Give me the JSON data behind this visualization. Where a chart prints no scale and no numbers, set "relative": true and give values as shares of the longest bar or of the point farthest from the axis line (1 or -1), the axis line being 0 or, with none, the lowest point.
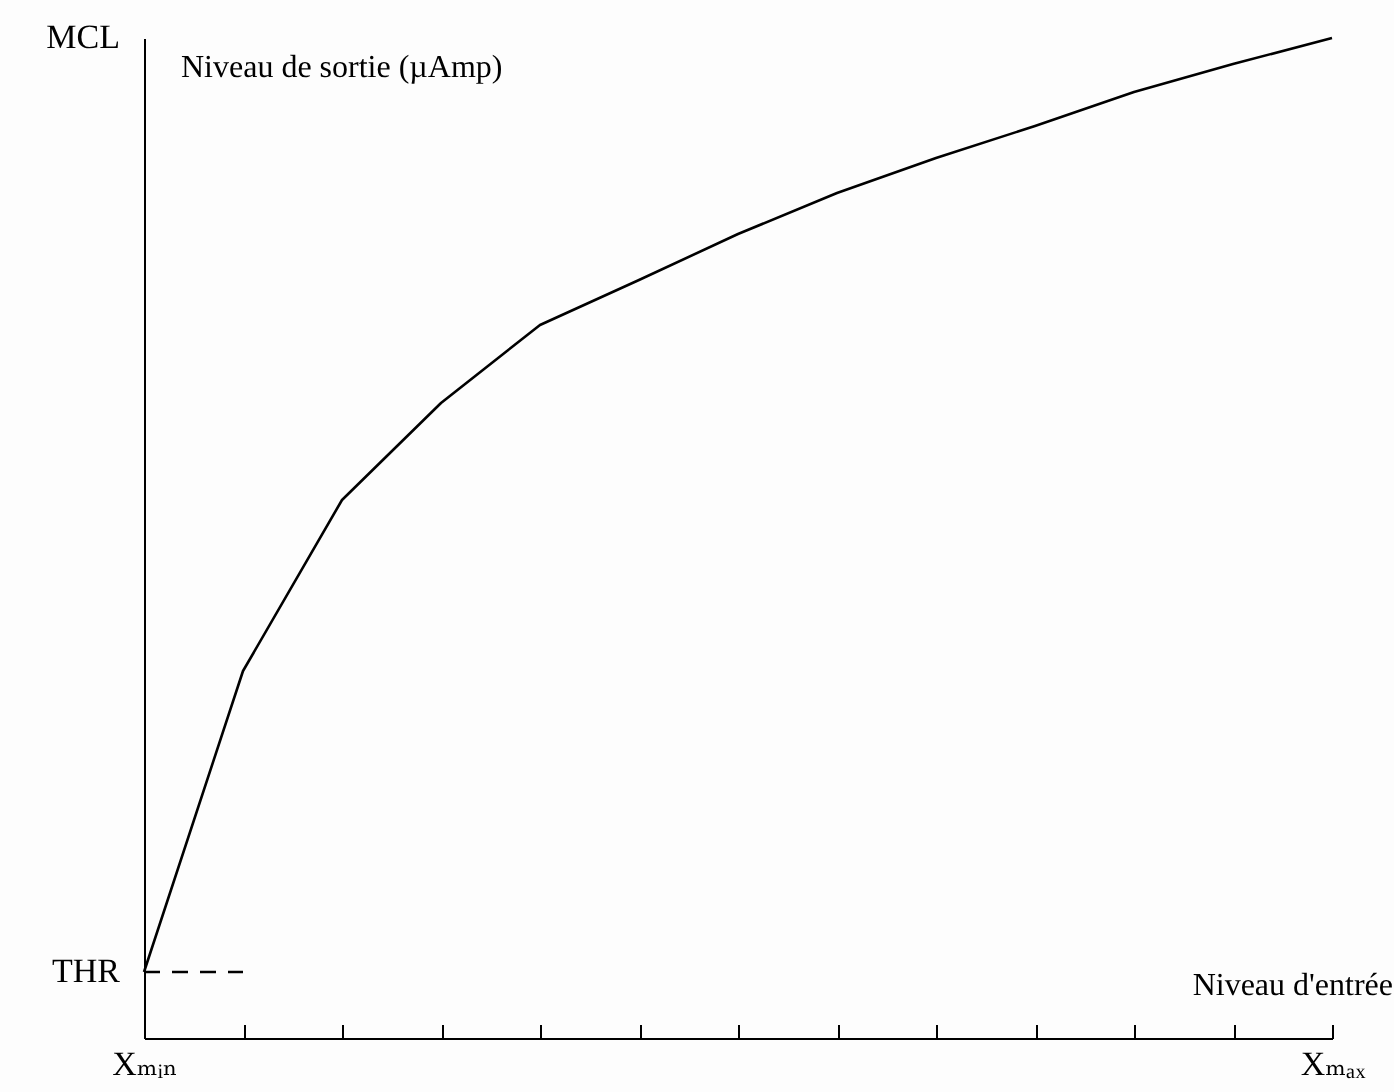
{
  "chart_data": {
    "type": "line",
    "relative": true,
    "xlabel": "Niveau d'entrée",
    "ylabel": "Niveau de sortie (µAmp)",
    "categories": [
      "Xₘᵢₙ",
      null,
      null,
      null,
      null,
      null,
      null,
      null,
      null,
      null,
      null,
      null,
      "Xₘₐₓ"
    ],
    "annotations": [
      "THR",
      "MCL"
    ],
    "series": [
      {
        "color": "#000000",
        "line_style": "solid",
        "values": [
          0.066,
          0.367,
          0.538,
          0.635,
          0.713,
          0.758,
          0.804,
          0.845,
          0.88,
          0.912,
          0.946,
          0.974,
          1
        ]
      },
      {
        "color": "#000000",
        "line_style": "dashed",
        "values": [
          0.066,
          0.066,
          null,
          null,
          null,
          null,
          null,
          null,
          null,
          null,
          null,
          null,
          null
        ]
      }
    ]
  }
}
